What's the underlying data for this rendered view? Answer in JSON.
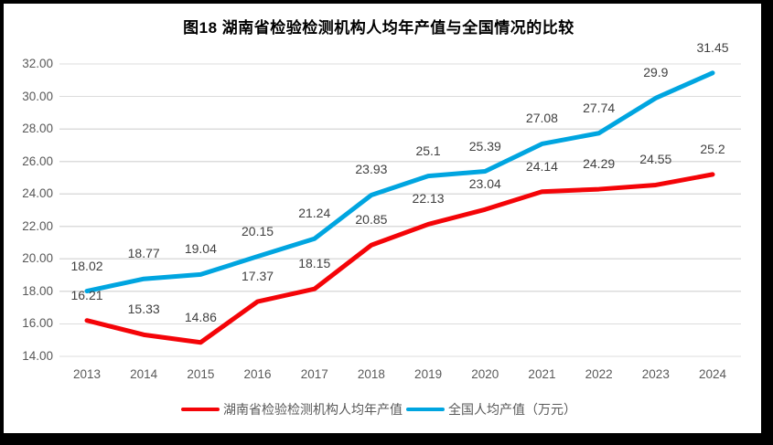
{
  "title": "图18 湖南省检验检测机构人均年产值与全国情况的比较",
  "chart_data": {
    "type": "line",
    "title": "图18 湖南省检验检测机构人均年产值与全国情况的比较",
    "categories": [
      "2013",
      "2014",
      "2015",
      "2016",
      "2017",
      "2018",
      "2019",
      "2020",
      "2021",
      "2022",
      "2023",
      "2024"
    ],
    "series": [
      {
        "name": "湖南省检验检测机构人均年产值",
        "color": "#f40408",
        "values": [
          16.21,
          15.33,
          14.86,
          17.37,
          18.15,
          20.85,
          22.13,
          23.04,
          24.14,
          24.29,
          24.55,
          25.2
        ]
      },
      {
        "name": "全国人均产值（万元）",
        "color": "#00a5e0",
        "values": [
          18.02,
          18.77,
          19.04,
          20.15,
          21.24,
          23.93,
          25.1,
          25.39,
          27.08,
          27.74,
          29.9,
          31.45
        ]
      }
    ],
    "ylim": [
      14,
      32
    ],
    "y_ticks": [
      "14.00",
      "16.00",
      "18.00",
      "20.00",
      "22.00",
      "24.00",
      "26.00",
      "28.00",
      "30.00",
      "32.00"
    ],
    "grid": true,
    "legend_position": "bottom",
    "data_labels": true
  },
  "colors": {
    "grid": "#dcdcdc",
    "axis_text": "#595959",
    "data_label_text": "#404040",
    "frame": "#000000",
    "background": "#ffffff"
  }
}
